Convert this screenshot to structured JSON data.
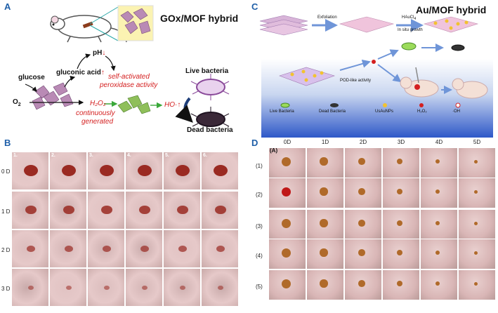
{
  "panels": {
    "A": {
      "letter": "A",
      "title": "GOx/MOF hybrid",
      "glucose": "glucose",
      "o2": "O",
      "o2_sub": "2",
      "gluconic": "gluconic acid",
      "up_arrow": "↑",
      "ph": "pH",
      "down_arrow": "↓",
      "self_activated_1": "self-activated",
      "self_activated_2": "peroxidase activity",
      "h2o2": "H₂O₂",
      "continuously_1": "continuously",
      "continuously_2": "generated",
      "ho": "HO·↑",
      "live": "Live bacteria",
      "dead": "Dead bacteria"
    },
    "C": {
      "letter": "C",
      "title": "Au/MOF hybrid",
      "exfoliation": "Exfoliation",
      "haucl": "HAuCl",
      "haucl_sub": "4",
      "in_situ": "In situ growth",
      "pod": "POD-like activity",
      "legend": [
        "Live Bacteria",
        "Dead Bacteria",
        "UsAuNPs",
        "H₂O₂",
        "·OH"
      ]
    },
    "B": {
      "letter": "B",
      "col_labels": [
        "1.",
        "2.",
        "3.",
        "4.",
        "5.",
        "6."
      ],
      "row_labels": [
        "0 D",
        "1 D",
        "2 D",
        "3 D"
      ]
    },
    "D": {
      "letter": "D",
      "sub": "(A)",
      "col_labels": [
        "0D",
        "1D",
        "2D",
        "3D",
        "4D",
        "5D"
      ],
      "row_labels": [
        "(1)",
        "(2)",
        "(3)",
        "(4)",
        "(5)"
      ]
    }
  },
  "colors": {
    "panel_letter": "#1f5fa8",
    "red_text": "#d42020",
    "skin": "#e6c9c9",
    "wound": "#9a2a22"
  }
}
